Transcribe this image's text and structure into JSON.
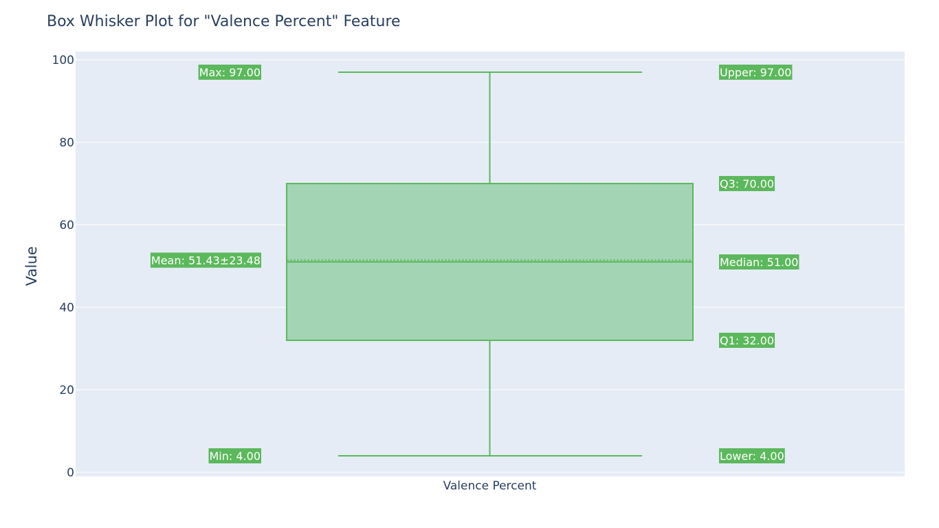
{
  "chart_data": {
    "type": "box",
    "title": "Box Whisker Plot for \"Valence Percent\" Feature",
    "ylabel": "Value",
    "category": "Valence Percent",
    "ylim": [
      -1,
      102
    ],
    "yticks": [
      0,
      20,
      40,
      60,
      80,
      100
    ],
    "grid": true,
    "stats": {
      "min": 4,
      "lower_fence": 4,
      "q1": 32,
      "median": 51,
      "mean": 51.43,
      "q3": 70,
      "upper_fence": 97,
      "max": 97,
      "std": 23.48
    },
    "annotations_left": [
      {
        "key": "max",
        "text": "Max: 97.00",
        "y": 97
      },
      {
        "key": "mean",
        "text": "Mean: 51.43±23.48",
        "y": 51.43
      },
      {
        "key": "min",
        "text": "Min: 4.00",
        "y": 4
      }
    ],
    "annotations_right": [
      {
        "key": "upper",
        "text": "Upper: 97.00",
        "y": 97
      },
      {
        "key": "q3",
        "text": "Q3: 70.00",
        "y": 70
      },
      {
        "key": "median",
        "text": "Median: 51.00",
        "y": 51
      },
      {
        "key": "q1",
        "text": "Q1: 32.00",
        "y": 32
      },
      {
        "key": "lower",
        "text": "Lower: 4.00",
        "y": 4
      }
    ],
    "colors": {
      "plot_bg": "#e5ecf6",
      "grid": "#ffffff",
      "box_fill": "#9fd3b0",
      "box_line": "#5cb85c",
      "label_bg": "#5cb85c",
      "text": "#2a3f5f"
    }
  }
}
